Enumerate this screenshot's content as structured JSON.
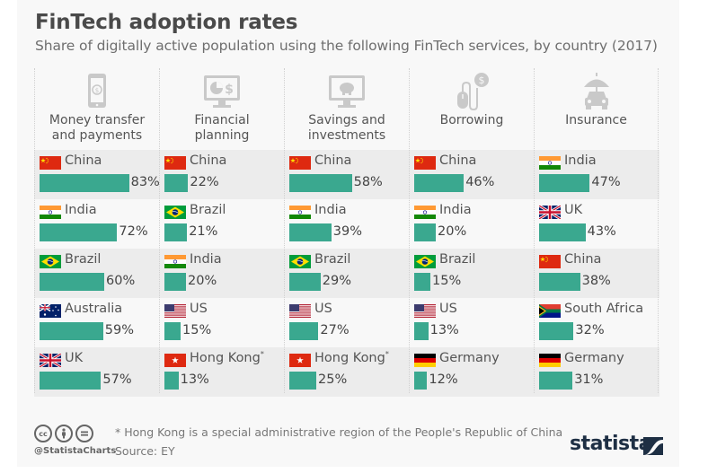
{
  "title": "FinTech adoption rates",
  "subtitle": "Share of digitally active population using the following FinTech services, by country (2017)",
  "colors": {
    "bar": "#3aa88f",
    "band": "#ececec",
    "background": "#f8f8f8",
    "logo": "#1e2f44"
  },
  "chart_data": {
    "type": "bar",
    "title": "FinTech adoption rates",
    "subtitle": "Share of digitally active population using the following FinTech services, by country (2017)",
    "unit": "%",
    "xlim": [
      0,
      100
    ],
    "groups": [
      {
        "category": "Money transfer and payments",
        "label_lines": [
          "Money transfer",
          "and payments"
        ],
        "icon": "mobile-payment-icon",
        "entries": [
          {
            "country": "China",
            "flag": "cn",
            "value": 83,
            "label": "83%"
          },
          {
            "country": "India",
            "flag": "in",
            "value": 72,
            "label": "72%"
          },
          {
            "country": "Brazil",
            "flag": "br",
            "value": 60,
            "label": "60%"
          },
          {
            "country": "Australia",
            "flag": "au",
            "value": 59,
            "label": "59%"
          },
          {
            "country": "UK",
            "flag": "uk",
            "value": 57,
            "label": "57%"
          }
        ]
      },
      {
        "category": "Financial planning",
        "label_lines": [
          "Financial",
          "planning"
        ],
        "icon": "monitor-chart-dollar-icon",
        "entries": [
          {
            "country": "China",
            "flag": "cn",
            "value": 22,
            "label": "22%"
          },
          {
            "country": "Brazil",
            "flag": "br",
            "value": 21,
            "label": "21%"
          },
          {
            "country": "India",
            "flag": "in",
            "value": 20,
            "label": "20%"
          },
          {
            "country": "US",
            "flag": "us",
            "value": 15,
            "label": "15%"
          },
          {
            "country": "Hong Kong",
            "flag": "hk",
            "value": 13,
            "label": "13%",
            "note_mark": "*"
          }
        ]
      },
      {
        "category": "Savings and investments",
        "label_lines": [
          "Savings and",
          "investments"
        ],
        "icon": "monitor-piggy-bank-icon",
        "entries": [
          {
            "country": "China",
            "flag": "cn",
            "value": 58,
            "label": "58%"
          },
          {
            "country": "India",
            "flag": "in",
            "value": 39,
            "label": "39%"
          },
          {
            "country": "Brazil",
            "flag": "br",
            "value": 29,
            "label": "29%"
          },
          {
            "country": "US",
            "flag": "us",
            "value": 27,
            "label": "27%"
          },
          {
            "country": "Hong Kong",
            "flag": "hk",
            "value": 25,
            "label": "25%",
            "note_mark": "*"
          }
        ]
      },
      {
        "category": "Borrowing",
        "label_lines": [
          "Borrowing"
        ],
        "icon": "mouse-dollar-icon",
        "entries": [
          {
            "country": "China",
            "flag": "cn",
            "value": 46,
            "label": "46%"
          },
          {
            "country": "India",
            "flag": "in",
            "value": 20,
            "label": "20%"
          },
          {
            "country": "Brazil",
            "flag": "br",
            "value": 15,
            "label": "15%"
          },
          {
            "country": "US",
            "flag": "us",
            "value": 13,
            "label": "13%"
          },
          {
            "country": "Germany",
            "flag": "de",
            "value": 12,
            "label": "12%"
          }
        ]
      },
      {
        "category": "Insurance",
        "label_lines": [
          "Insurance"
        ],
        "icon": "umbrella-car-icon",
        "entries": [
          {
            "country": "India",
            "flag": "in",
            "value": 47,
            "label": "47%"
          },
          {
            "country": "UK",
            "flag": "uk",
            "value": 43,
            "label": "43%"
          },
          {
            "country": "China",
            "flag": "cn",
            "value": 38,
            "label": "38%"
          },
          {
            "country": "South Africa",
            "flag": "za",
            "value": 32,
            "label": "32%"
          },
          {
            "country": "Germany",
            "flag": "de",
            "value": 31,
            "label": "31%"
          }
        ]
      }
    ]
  },
  "footer": {
    "note": "* Hong Kong is a special administrative region of the People's Republic of China",
    "source": "Source: EY",
    "handle": "@StatistaCharts",
    "license_icons": [
      "cc",
      "by",
      "nd"
    ],
    "cc_text": "cc",
    "logo_text": "statista"
  }
}
